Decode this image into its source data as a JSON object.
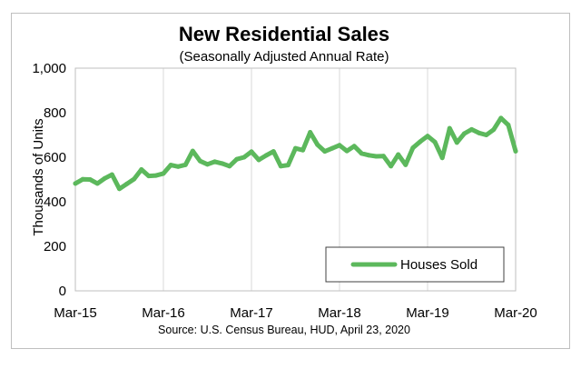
{
  "chart_data": {
    "type": "line",
    "title": "New Residential Sales",
    "subtitle": "(Seasonally Adjusted Annual Rate)",
    "ylabel": "Thousands of Units",
    "xlabel": "",
    "source": "Source:  U.S. Census Bureau, HUD, April 23, 2020",
    "ylim": [
      0,
      1000
    ],
    "yticks": [
      0,
      200,
      400,
      600,
      800,
      1000
    ],
    "ytick_labels": [
      "0",
      "200",
      "400",
      "600",
      "800",
      "1,000"
    ],
    "xtick_labels": [
      "Mar-15",
      "Mar-16",
      "Mar-17",
      "Mar-18",
      "Mar-19",
      "Mar-20"
    ],
    "xtick_indices": [
      0,
      12,
      24,
      36,
      48,
      60
    ],
    "grid": true,
    "legend": {
      "position": "bottom-right"
    },
    "line_color": "#5cb85c",
    "series": [
      {
        "name": "Houses Sold",
        "start": "Mar-15",
        "frequency": "monthly",
        "values": [
          482,
          501,
          500,
          482,
          505,
          522,
          458,
          480,
          502,
          545,
          516,
          518,
          527,
          565,
          558,
          566,
          628,
          583,
          568,
          580,
          572,
          560,
          591,
          600,
          625,
          588,
          608,
          626,
          560,
          565,
          640,
          632,
          712,
          656,
          626,
          640,
          654,
          628,
          650,
          617,
          609,
          604,
          605,
          560,
          612,
          566,
          642,
          670,
          695,
          668,
          597,
          730,
          666,
          706,
          725,
          709,
          700,
          724,
          776,
          745,
          627
        ]
      }
    ]
  }
}
